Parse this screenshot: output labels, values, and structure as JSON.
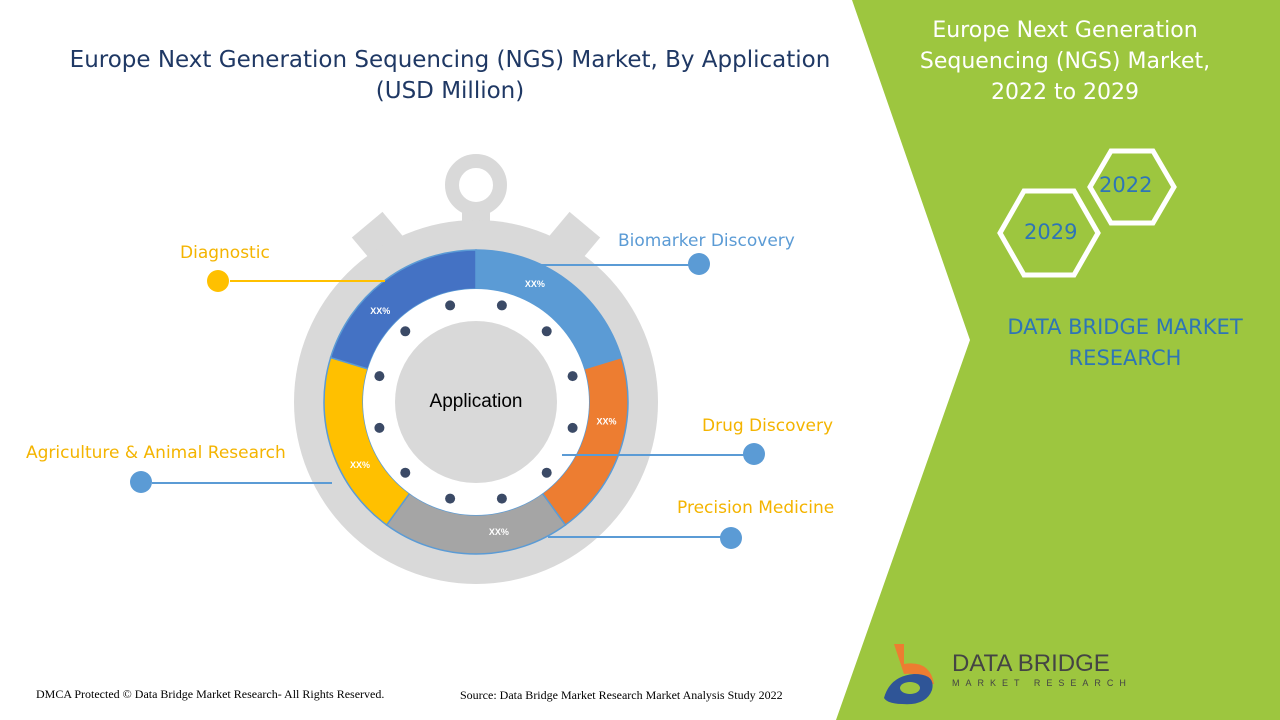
{
  "title": "Europe Next Generation Sequencing (NGS) Market, By Application",
  "subtitle": "(USD Million)",
  "side_title": [
    "Europe Next Generation",
    "Sequencing (NGS) Market,",
    "2022 to 2029"
  ],
  "years": [
    "2022",
    "2029"
  ],
  "brand": [
    "DATA BRIDGE MARKET",
    "RESEARCH"
  ],
  "center_label": "Application",
  "segments": [
    {
      "label": "Biomarker Discovery",
      "value": "XX%",
      "color": "#5b9bd5"
    },
    {
      "label": "Drug Discovery",
      "value": "XX%",
      "color": "#ed7d31"
    },
    {
      "label": "Precision Medicine",
      "value": "XX%",
      "color": "#a5a5a5"
    },
    {
      "label": "Agriculture & Animal Research",
      "value": "XX%",
      "color": "#ffc000"
    },
    {
      "label": "Diagnostic",
      "value": "XX%",
      "color": "#4472c4"
    }
  ],
  "logo": {
    "name": "DATA BRIDGE",
    "tagline": "MARKET RESEARCH"
  },
  "footer": {
    "left": "DMCA Protected © Data Bridge Market Research- All Rights Reserved.",
    "right": "Source: Data Bridge Market Research Market Analysis Study 2022"
  },
  "colors": {
    "green": "#9dc63f",
    "title": "#1f3864",
    "accent": "#2e75b6"
  }
}
